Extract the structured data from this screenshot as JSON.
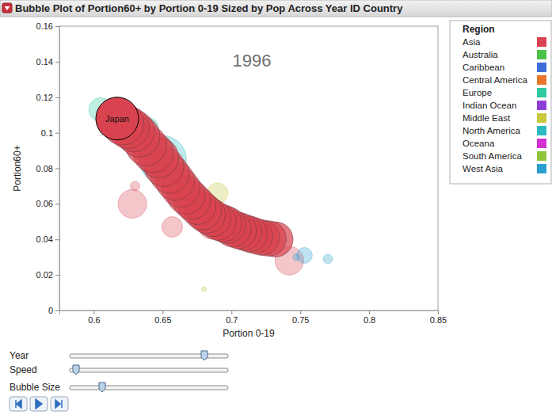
{
  "chart_data": {
    "type": "bubble",
    "title": "Bubble Plot of Portion60+ by Portion 0-19 Sized by Pop Across Year ID Country",
    "annotation": "1996",
    "x_label": "Portion 0-19",
    "y_label": "Portion60+",
    "xlim": [
      0.575,
      0.85
    ],
    "xticks": [
      0.6,
      0.65,
      0.7,
      0.75,
      0.8,
      0.85
    ],
    "ylim": [
      0,
      0.16
    ],
    "yticks": [
      0,
      0.02,
      0.04,
      0.06,
      0.08,
      0.1,
      0.12,
      0.14,
      0.16
    ],
    "legend": "right",
    "legend_title": "Region",
    "series": [
      {
        "name": "Asia",
        "color": "#d8434f",
        "x": [
          0.628,
          0.657,
          0.685,
          0.742,
          0.662,
          0.63
        ],
        "y": [
          0.06,
          0.047,
          0.047,
          0.028,
          0.071,
          0.07
        ],
        "size": [
          56,
          29,
          39,
          56,
          3,
          6
        ]
      },
      {
        "name": "Australia",
        "color": "#4cc24c",
        "x": [],
        "y": [],
        "size": []
      },
      {
        "name": "Caribbean",
        "color": "#3e6fd8",
        "x": [],
        "y": [],
        "size": []
      },
      {
        "name": "Central America",
        "color": "#e8772a",
        "x": [],
        "y": [],
        "size": []
      },
      {
        "name": "Europe",
        "color": "#2fc9a2",
        "x": [
          0.605,
          0.64,
          0.668
        ],
        "y": [
          0.113,
          0.103,
          0.075
        ],
        "size": [
          39,
          25,
          4
        ]
      },
      {
        "name": "Indian Ocean",
        "color": "#8f3fd8",
        "x": [],
        "y": [],
        "size": []
      },
      {
        "name": "Middle East",
        "color": "#c8c83c",
        "x": [
          0.69,
          0.68
        ],
        "y": [
          0.066,
          0.012
        ],
        "size": [
          29,
          1.5
        ]
      },
      {
        "name": "North America",
        "color": "#2cb8c0",
        "x": [
          0.65,
          0.675
        ],
        "y": [
          0.085,
          0.066
        ],
        "size": [
          154,
          3
        ]
      },
      {
        "name": "Oceana",
        "color": "#d430d4",
        "x": [],
        "y": [],
        "size": []
      },
      {
        "name": "South America",
        "color": "#8fc43a",
        "x": [],
        "y": [],
        "size": []
      },
      {
        "name": "West Asia",
        "color": "#2aa0cf",
        "x": [
          0.753,
          0.77,
          0.747
        ],
        "y": [
          0.031,
          0.029,
          0.03
        ],
        "size": [
          17,
          6,
          3
        ]
      }
    ],
    "highlight": {
      "label": "Japan",
      "color": "#d8434f",
      "x": [
        0.732,
        0.727,
        0.722,
        0.717,
        0.713,
        0.709,
        0.705,
        0.701,
        0.697,
        0.694,
        0.69,
        0.686,
        0.682,
        0.679,
        0.675,
        0.671,
        0.667,
        0.663,
        0.659,
        0.655,
        0.651,
        0.647,
        0.643,
        0.638,
        0.633,
        0.629,
        0.625,
        0.621,
        0.617
      ],
      "y": [
        0.04,
        0.0405,
        0.041,
        0.042,
        0.043,
        0.044,
        0.045,
        0.046,
        0.048,
        0.049,
        0.05,
        0.052,
        0.054,
        0.056,
        0.059,
        0.062,
        0.065,
        0.069,
        0.073,
        0.077,
        0.081,
        0.086,
        0.089,
        0.093,
        0.098,
        0.101,
        0.103,
        0.105,
        0.108
      ],
      "size": [
        84,
        85,
        86,
        87,
        88,
        89,
        90,
        91,
        92,
        93,
        94,
        95,
        96,
        97,
        98,
        99,
        101,
        103,
        105,
        107,
        109,
        111,
        113,
        115,
        117,
        119,
        121,
        123,
        125
      ]
    },
    "sliders": [
      "Year",
      "Speed",
      "Bubble Size"
    ]
  }
}
